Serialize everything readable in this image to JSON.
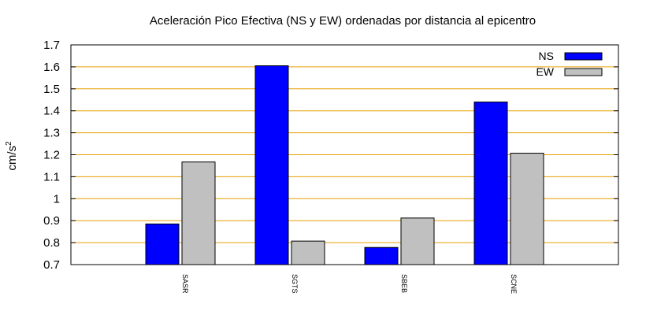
{
  "chart_data": {
    "type": "bar",
    "title": "Aceleración Pico Efectiva (NS y EW) ordenadas por distancia al epicentro",
    "xlabel": "",
    "ylabel": "cm/s2",
    "ylabel_base": "cm/s",
    "ylabel_sup": "2",
    "categories": [
      "SASR",
      "SGTS",
      "SBEB",
      "SCNE"
    ],
    "series": [
      {
        "name": "NS",
        "color": "#0000ff",
        "values": [
          0.885,
          1.605,
          0.778,
          1.44
        ]
      },
      {
        "name": "EW",
        "color": "#c0c0c0",
        "values": [
          1.167,
          0.807,
          0.912,
          1.207
        ]
      }
    ],
    "ylim": [
      0.7,
      1.7
    ],
    "yticks": [
      0.7,
      0.8,
      0.9,
      1.0,
      1.1,
      1.2,
      1.3,
      1.4,
      1.5,
      1.6,
      1.7
    ],
    "ytick_labels": [
      "0.7",
      "0.8",
      "0.9",
      "1",
      "1.1",
      "1.2",
      "1.3",
      "1.4",
      "1.5",
      "1.6",
      "1.7"
    ],
    "grid": "horizontal",
    "grid_color": "#e6a000",
    "legend_position": "top-right"
  }
}
